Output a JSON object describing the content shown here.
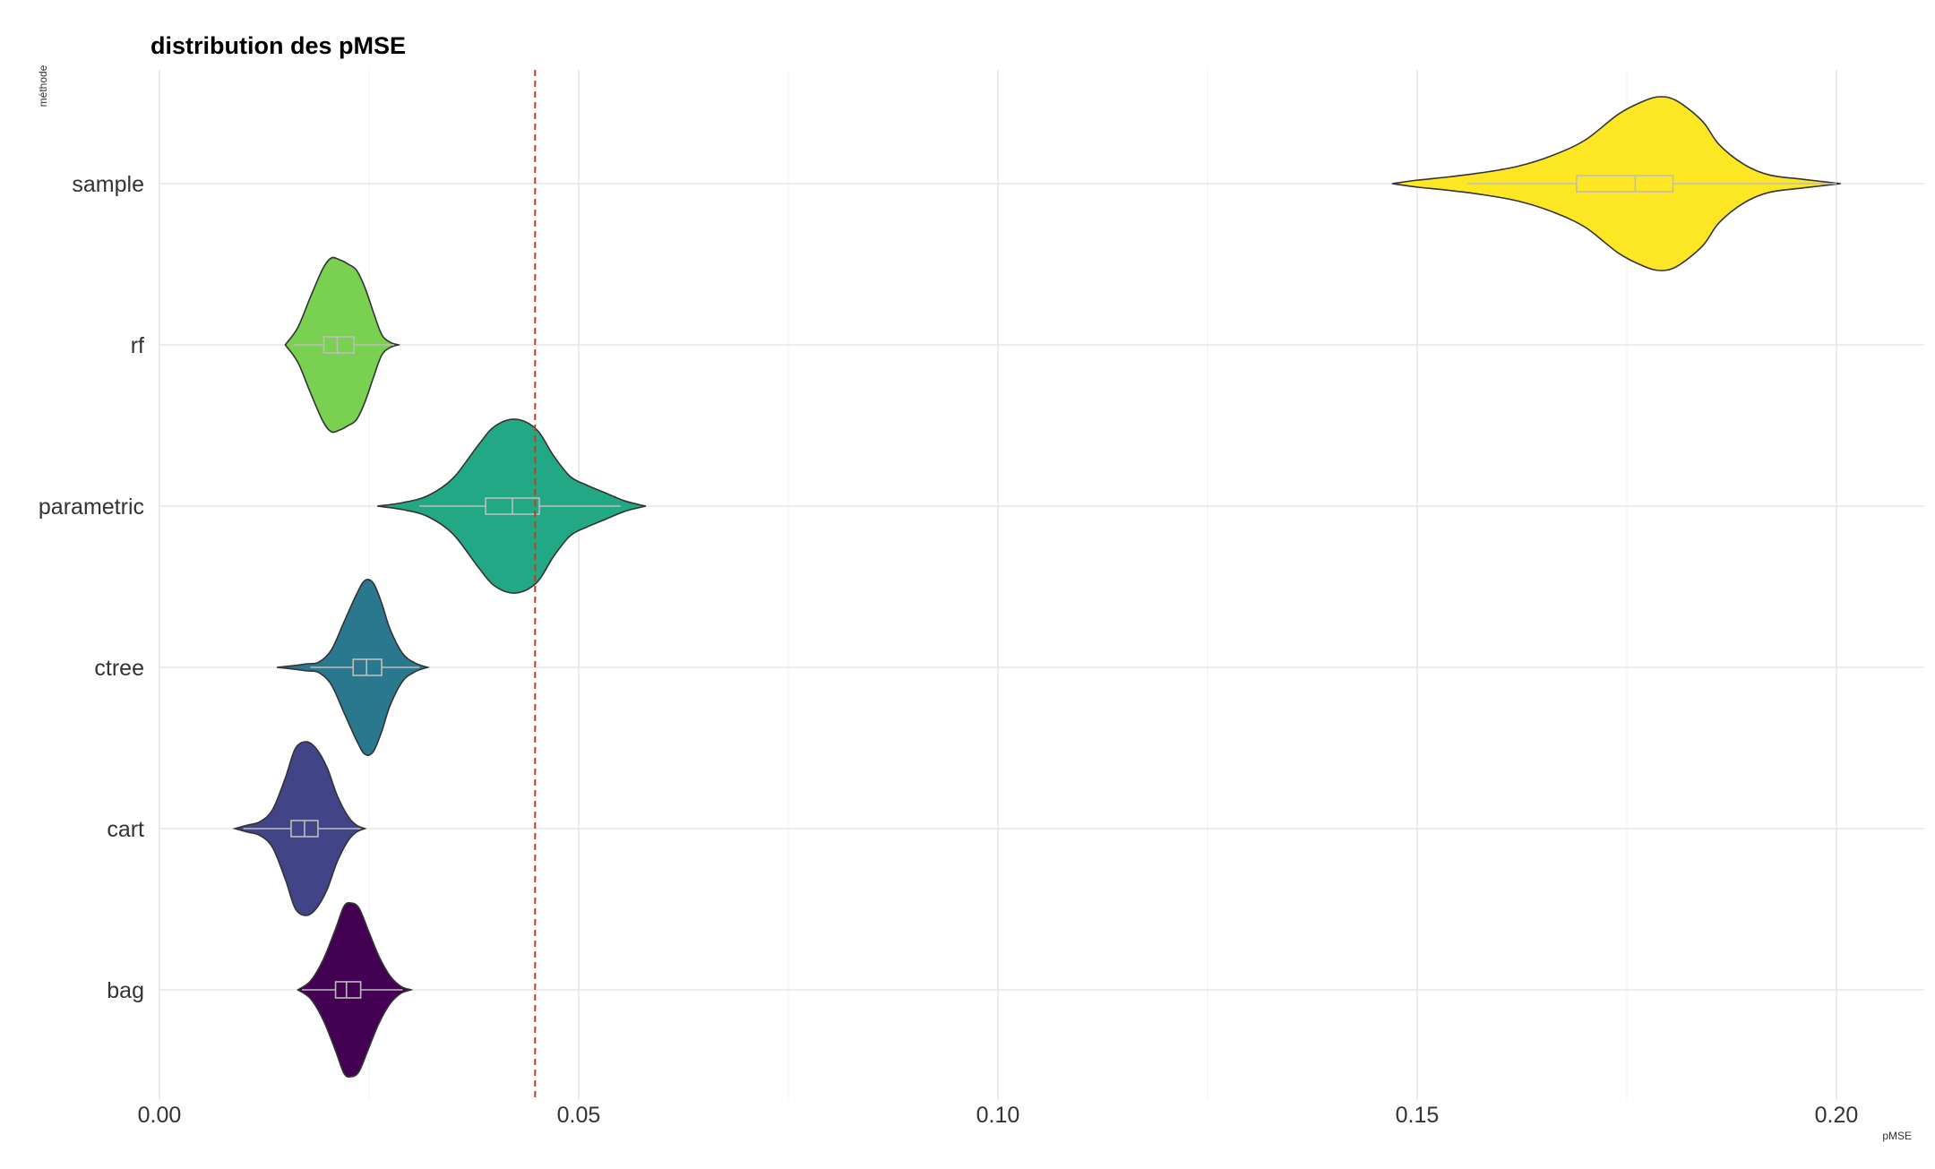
{
  "chart_data": {
    "type": "violin",
    "title": "distribution des pMSE",
    "xlabel": "pMSE",
    "ylabel": "méthode",
    "xlim": [
      0.0,
      0.21
    ],
    "x_ticks": [
      0.0,
      0.05,
      0.1,
      0.15,
      0.2
    ],
    "x_tick_labels": [
      "0.00",
      "0.05",
      "0.10",
      "0.15",
      "0.20"
    ],
    "orientation": "horizontal",
    "grid": true,
    "legend": "none",
    "reference_line": {
      "x": 0.0448,
      "style": "dashed",
      "color": "#c0392b"
    },
    "series": [
      {
        "name": "sample",
        "color": "#fde725",
        "box": {
          "q1": 0.169,
          "median": 0.176,
          "q3": 0.1805,
          "whisker_low": 0.156,
          "whisker_high": 0.2
        },
        "density": [
          [
            0.147,
            0.0
          ],
          [
            0.15,
            0.04
          ],
          [
            0.154,
            0.08
          ],
          [
            0.158,
            0.13
          ],
          [
            0.162,
            0.2
          ],
          [
            0.166,
            0.32
          ],
          [
            0.17,
            0.5
          ],
          [
            0.174,
            0.8
          ],
          [
            0.177,
            0.95
          ],
          [
            0.179,
            1.0
          ],
          [
            0.181,
            0.95
          ],
          [
            0.184,
            0.72
          ],
          [
            0.186,
            0.45
          ],
          [
            0.189,
            0.22
          ],
          [
            0.192,
            0.1
          ],
          [
            0.196,
            0.05
          ],
          [
            0.2005,
            0.0
          ]
        ]
      },
      {
        "name": "rf",
        "color": "#7ad151",
        "box": {
          "q1": 0.0196,
          "median": 0.0212,
          "q3": 0.0232,
          "whisker_low": 0.016,
          "whisker_high": 0.028
        },
        "density": [
          [
            0.015,
            0.0
          ],
          [
            0.0165,
            0.2
          ],
          [
            0.018,
            0.55
          ],
          [
            0.0195,
            0.88
          ],
          [
            0.0205,
            1.0
          ],
          [
            0.0215,
            0.98
          ],
          [
            0.0225,
            0.93
          ],
          [
            0.0235,
            0.86
          ],
          [
            0.0245,
            0.66
          ],
          [
            0.0255,
            0.38
          ],
          [
            0.0265,
            0.12
          ],
          [
            0.0275,
            0.03
          ],
          [
            0.0285,
            0.0
          ]
        ]
      },
      {
        "name": "parametric",
        "color": "#22a884",
        "box": {
          "q1": 0.0389,
          "median": 0.0421,
          "q3": 0.0453,
          "whisker_low": 0.031,
          "whisker_high": 0.055
        },
        "density": [
          [
            0.026,
            0.0
          ],
          [
            0.029,
            0.04
          ],
          [
            0.032,
            0.12
          ],
          [
            0.035,
            0.32
          ],
          [
            0.038,
            0.7
          ],
          [
            0.04,
            0.92
          ],
          [
            0.0425,
            1.0
          ],
          [
            0.045,
            0.88
          ],
          [
            0.047,
            0.58
          ],
          [
            0.049,
            0.34
          ],
          [
            0.051,
            0.24
          ],
          [
            0.053,
            0.16
          ],
          [
            0.0555,
            0.06
          ],
          [
            0.058,
            0.0
          ]
        ]
      },
      {
        "name": "ctree",
        "color": "#2a788e",
        "box": {
          "q1": 0.0231,
          "median": 0.0247,
          "q3": 0.0265,
          "whisker_low": 0.018,
          "whisker_high": 0.031
        },
        "density": [
          [
            0.014,
            0.0
          ],
          [
            0.016,
            0.02
          ],
          [
            0.0175,
            0.04
          ],
          [
            0.019,
            0.06
          ],
          [
            0.0205,
            0.2
          ],
          [
            0.022,
            0.52
          ],
          [
            0.0235,
            0.84
          ],
          [
            0.0245,
            1.0
          ],
          [
            0.0255,
            0.97
          ],
          [
            0.0265,
            0.74
          ],
          [
            0.0275,
            0.44
          ],
          [
            0.029,
            0.16
          ],
          [
            0.0305,
            0.05
          ],
          [
            0.032,
            0.0
          ]
        ]
      },
      {
        "name": "cart",
        "color": "#414487",
        "box": {
          "q1": 0.0157,
          "median": 0.0173,
          "q3": 0.0189,
          "whisker_low": 0.01,
          "whisker_high": 0.024
        },
        "density": [
          [
            0.009,
            0.0
          ],
          [
            0.0105,
            0.04
          ],
          [
            0.012,
            0.08
          ],
          [
            0.0135,
            0.22
          ],
          [
            0.015,
            0.58
          ],
          [
            0.0162,
            0.92
          ],
          [
            0.0175,
            1.0
          ],
          [
            0.0187,
            0.92
          ],
          [
            0.02,
            0.7
          ],
          [
            0.0212,
            0.38
          ],
          [
            0.0225,
            0.14
          ],
          [
            0.0235,
            0.04
          ],
          [
            0.0245,
            0.0
          ]
        ]
      },
      {
        "name": "bag",
        "color": "#440154",
        "box": {
          "q1": 0.021,
          "median": 0.0223,
          "q3": 0.024,
          "whisker_low": 0.017,
          "whisker_high": 0.029
        },
        "density": [
          [
            0.0165,
            0.0
          ],
          [
            0.018,
            0.1
          ],
          [
            0.0195,
            0.34
          ],
          [
            0.021,
            0.7
          ],
          [
            0.022,
            0.96
          ],
          [
            0.0228,
            1.0
          ],
          [
            0.0238,
            0.94
          ],
          [
            0.025,
            0.66
          ],
          [
            0.0262,
            0.38
          ],
          [
            0.0275,
            0.16
          ],
          [
            0.0288,
            0.04
          ],
          [
            0.03,
            0.0
          ]
        ]
      }
    ]
  }
}
